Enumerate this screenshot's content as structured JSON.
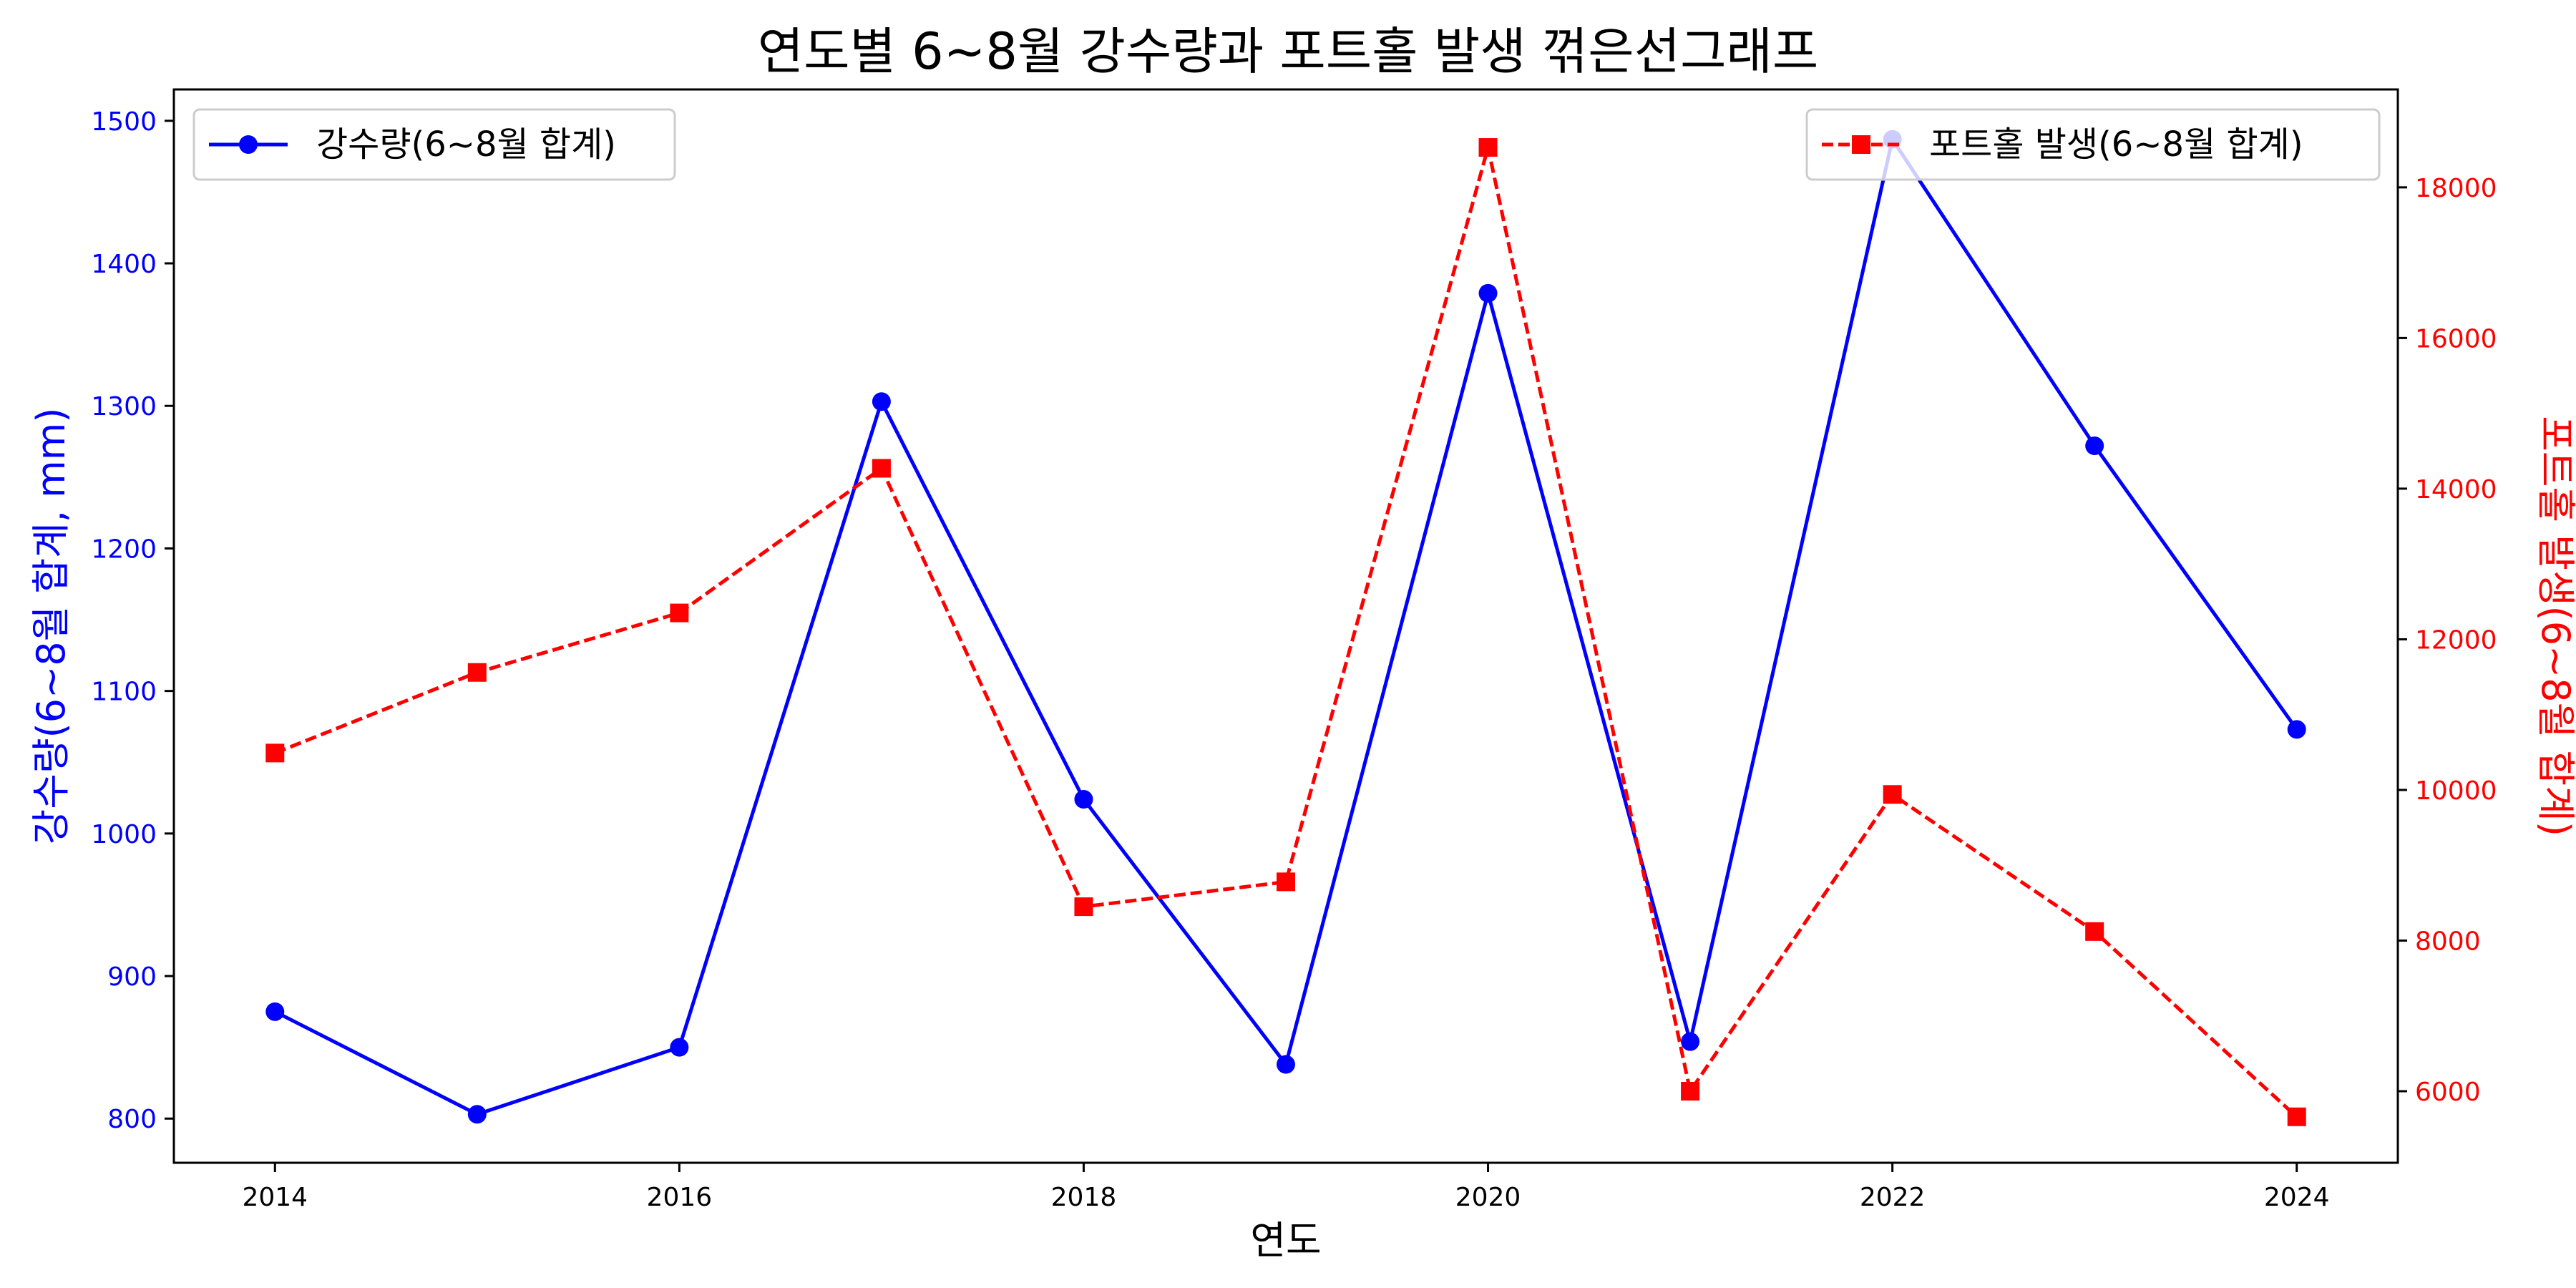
{
  "chart_data": {
    "type": "line",
    "title": "연도별 6~8월 강수량과 포트홀 발생 꺾은선그래프",
    "xlabel": "연도",
    "ylabel_left": "강수량(6~8월 합계, mm)",
    "ylabel_right": "포트홀 발생(6~8월 합계)",
    "x": [
      2014,
      2015,
      2016,
      2017,
      2018,
      2019,
      2020,
      2021,
      2022,
      2023,
      2024
    ],
    "x_ticks": [
      2014,
      2016,
      2018,
      2020,
      2022,
      2024
    ],
    "xlim": [
      2013.5,
      2024.5
    ],
    "ylim_left": [
      769,
      1522
    ],
    "ylim_right": [
      5050,
      19300
    ],
    "y_ticks_left": [
      800,
      900,
      1000,
      1100,
      1200,
      1300,
      1400,
      1500
    ],
    "y_ticks_right": [
      6000,
      8000,
      10000,
      12000,
      14000,
      16000,
      18000
    ],
    "grid": false,
    "series": [
      {
        "name": "강수량(6~8월 합계)",
        "axis": "left",
        "color": "#0000ff",
        "line_style": "solid",
        "marker": "circle",
        "legend_position": "top-left",
        "values": [
          875,
          803,
          850,
          1303,
          1024,
          838,
          1379,
          854,
          1487,
          1272,
          1073
        ]
      },
      {
        "name": "포트홀 발생(6~8월 합계)",
        "axis": "right",
        "color": "#ff0000",
        "line_style": "dashed",
        "marker": "square",
        "legend_position": "top-right",
        "values": [
          10490,
          11560,
          12350,
          14270,
          8450,
          8780,
          18530,
          6000,
          9940,
          8120,
          5660
        ]
      }
    ]
  }
}
